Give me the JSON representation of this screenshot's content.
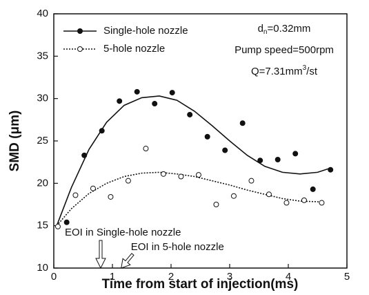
{
  "chart_data": {
    "type": "scatter",
    "xlabel": "Time from start of injection(ms)",
    "ylabel": "SMD (μm)",
    "xlim": [
      0,
      5
    ],
    "xticks": [
      0,
      1,
      2,
      3,
      4,
      5
    ],
    "ylim": [
      10,
      40
    ],
    "yticks": [
      10,
      15,
      20,
      25,
      30,
      35,
      40
    ],
    "legend": "upper left",
    "series": [
      {
        "name": "Single-hole nozzle",
        "color": "#111111",
        "marker": "filled",
        "x": [
          0.22,
          0.52,
          0.82,
          1.12,
          1.42,
          1.72,
          2.02,
          2.32,
          2.62,
          2.92,
          3.22,
          3.52,
          3.82,
          4.12,
          4.42,
          4.72
        ],
        "values": [
          15.4,
          23.3,
          26.2,
          29.7,
          30.8,
          29.4,
          30.7,
          28.1,
          25.5,
          23.9,
          27.1,
          22.7,
          22.8,
          23.5,
          19.3,
          21.6
        ],
        "fit": {
          "dash": false,
          "x": [
            0.05,
            0.3,
            0.6,
            0.9,
            1.2,
            1.5,
            1.8,
            2.1,
            2.4,
            2.7,
            3.0,
            3.3,
            3.6,
            3.9,
            4.2,
            4.5,
            4.72
          ],
          "values": [
            15.0,
            19.5,
            24.0,
            27.2,
            29.2,
            30.1,
            30.3,
            29.8,
            28.5,
            26.8,
            25.0,
            23.3,
            22.0,
            21.3,
            21.1,
            21.3,
            21.8
          ]
        }
      },
      {
        "name": "5-hole nozzle",
        "color": "#111111",
        "marker": "open",
        "x": [
          0.07,
          0.37,
          0.67,
          0.97,
          1.27,
          1.57,
          1.87,
          2.17,
          2.47,
          2.77,
          3.07,
          3.37,
          3.67,
          3.97,
          4.27,
          4.57
        ],
        "values": [
          14.9,
          18.6,
          19.4,
          18.4,
          20.3,
          24.1,
          21.1,
          20.8,
          21.0,
          17.5,
          18.5,
          20.3,
          18.7,
          17.7,
          18.0,
          17.7
        ],
        "fit": {
          "dash": true,
          "x": [
            0.05,
            0.3,
            0.6,
            0.9,
            1.2,
            1.5,
            1.8,
            2.1,
            2.4,
            2.7,
            3.0,
            3.3,
            3.6,
            3.9,
            4.2,
            4.6
          ],
          "values": [
            15.0,
            17.0,
            18.8,
            20.0,
            20.8,
            21.2,
            21.3,
            21.1,
            20.8,
            20.3,
            19.8,
            19.2,
            18.7,
            18.2,
            17.9,
            17.8
          ]
        }
      }
    ],
    "info": [
      [
        "d",
        "n",
        "=0.32mm"
      ],
      [
        "Pump speed=500rpm"
      ],
      [
        "Q=7.31mm",
        "3",
        "/st"
      ]
    ],
    "annotations": [
      {
        "text": "EOI in Single-hole nozzle",
        "at": 0.8
      },
      {
        "text": "EOI in 5-hole nozzle",
        "at": 1.15
      }
    ]
  }
}
